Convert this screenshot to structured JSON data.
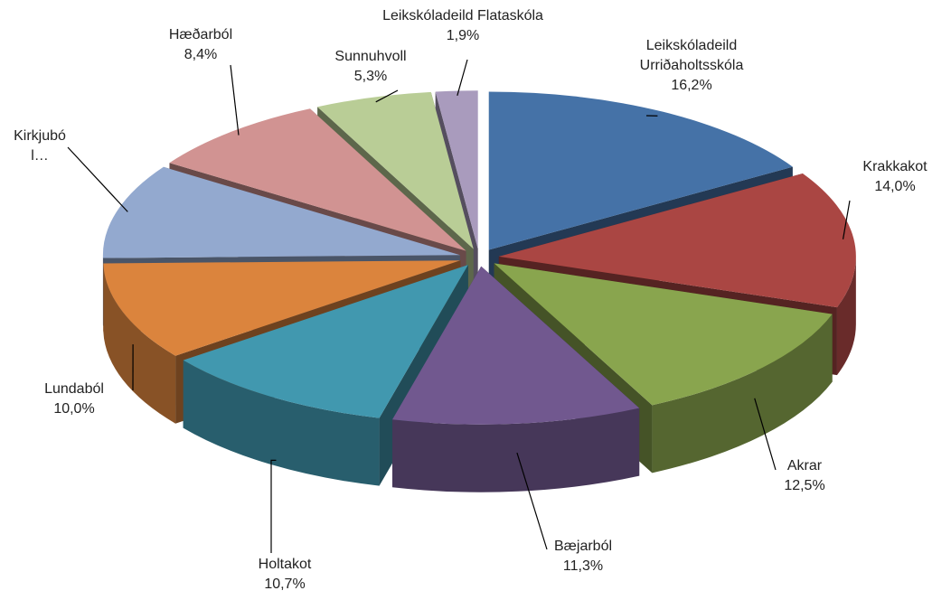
{
  "chart_data": {
    "type": "pie",
    "categories": [
      "Leikskóladeild Urriðaholtsskóla",
      "Krakkakot",
      "Akrar",
      "Bæjarból",
      "Holtakot",
      "Lundaból",
      "Kirkjuból…",
      "Hæðarból",
      "Sunnuhvoll",
      "Leikskóladeild Flataskóla"
    ],
    "values": [
      16.2,
      14.0,
      12.5,
      11.3,
      10.7,
      10.0,
      9.7,
      8.4,
      5.3,
      1.9
    ],
    "value_labels": [
      "16,2%",
      "14,0%",
      "12,5%",
      "11,3%",
      "10,7%",
      "10,0%",
      null,
      "8,4%",
      "5,3%",
      "1,9%"
    ],
    "colors": [
      "#4572a7",
      "#aa4643",
      "#89a54e",
      "#71588f",
      "#4198af",
      "#db843d",
      "#93a9cf",
      "#d19392",
      "#b9cd96",
      "#a99bbd"
    ]
  }
}
